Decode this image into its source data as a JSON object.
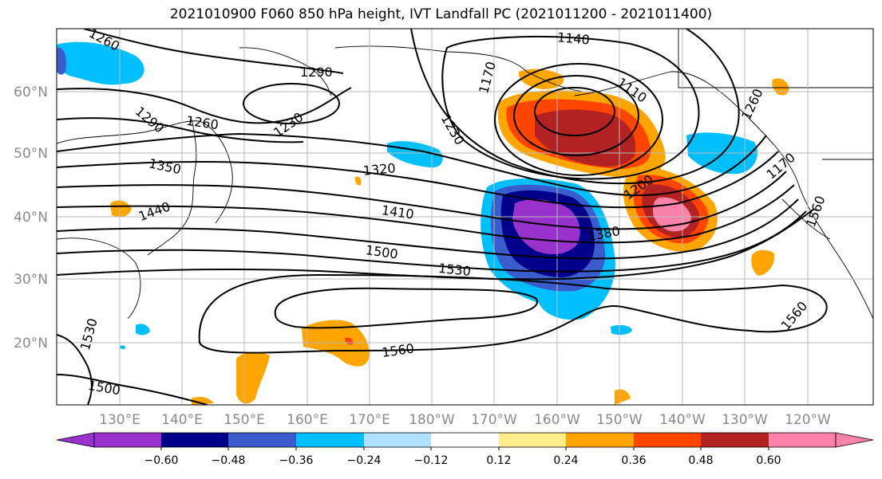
{
  "title": "2021010900 F060 850 hPa height, IVT Landfall PC (2021011200 - 2021011400)",
  "map": {
    "lat_labels": [
      "60°N",
      "50°N",
      "40°N",
      "30°N",
      "20°N"
    ],
    "lon_labels": [
      "130°E",
      "140°E",
      "150°E",
      "160°E",
      "170°E",
      "180°W",
      "170°W",
      "160°W",
      "150°W",
      "140°W",
      "130°W",
      "120°W"
    ],
    "contour_labels": [
      "1260",
      "1290",
      "1290",
      "1260",
      "1230",
      "1140",
      "1170",
      "1110",
      "1260",
      "1230",
      "1170",
      "1350",
      "1320",
      "1200",
      "1440",
      "1410",
      "1380",
      "1560",
      "1500",
      "1530",
      "1560",
      "1560",
      "1530",
      "1500"
    ],
    "gridlines": true
  },
  "colorbar": {
    "ticks": [
      "−0.60",
      "−0.48",
      "−0.36",
      "−0.24",
      "−0.12",
      "0.12",
      "0.24",
      "0.36",
      "0.48",
      "0.60"
    ],
    "colors": [
      "#9932cc",
      "#00008b",
      "#3a5ccc",
      "#00bfff",
      "#b0e2ff",
      "#ffffff",
      "#ffec8b",
      "#ffa500",
      "#ff4500",
      "#b22222",
      "#ff82ab"
    ]
  },
  "chart_data": {
    "type": "heatmap",
    "title": "2021010900 F060 850 hPa height, IVT Landfall PC (2021011200 - 2021011400)",
    "x_ticks": [
      "130°E",
      "140°E",
      "150°E",
      "160°E",
      "170°E",
      "180°W",
      "170°W",
      "160°W",
      "150°W",
      "140°W",
      "130°W",
      "120°W"
    ],
    "y_ticks": [
      "60°N",
      "50°N",
      "40°N",
      "30°N",
      "20°N"
    ],
    "colorbar_levels": [
      -0.6,
      -0.48,
      -0.36,
      -0.24,
      -0.12,
      0.12,
      0.24,
      0.36,
      0.48,
      0.6
    ],
    "height_contours_m": [
      1110,
      1140,
      1170,
      1200,
      1230,
      1260,
      1290,
      1320,
      1350,
      1380,
      1410,
      1440,
      1500,
      1530,
      1560
    ],
    "grid": true
  }
}
